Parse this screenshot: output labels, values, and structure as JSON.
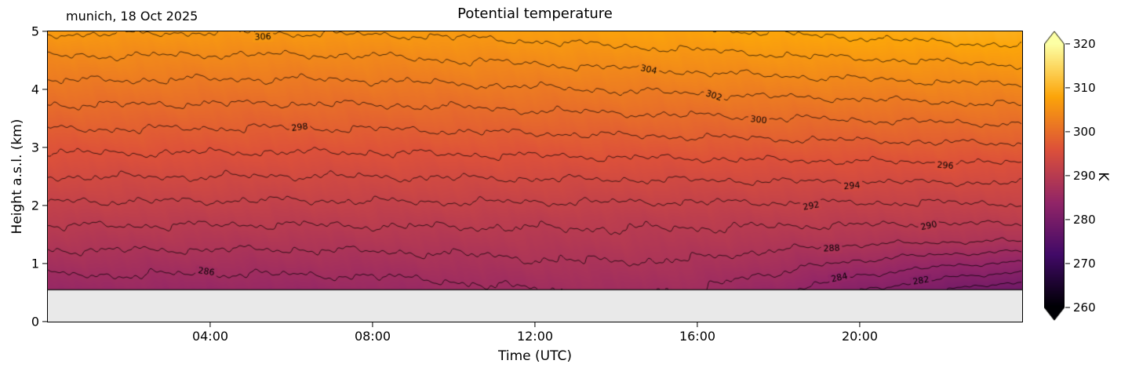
{
  "header": {
    "annotation": "munich, 18 Oct 2025"
  },
  "chart_data": {
    "type": "heatmap",
    "style": "filled_contour",
    "title": "Potential temperature",
    "xlabel": "Time (UTC)",
    "ylabel": "Height a.s.l. (km)",
    "xlim_hours": [
      0,
      24
    ],
    "ylim_km": [
      0,
      5
    ],
    "min_height_km": 0.55,
    "axes_background": "#e9e9e9",
    "xticks": [
      {
        "hour": 4,
        "label": "04:00"
      },
      {
        "hour": 8,
        "label": "08:00"
      },
      {
        "hour": 12,
        "label": "12:00"
      },
      {
        "hour": 16,
        "label": "16:00"
      },
      {
        "hour": 20,
        "label": "20:00"
      }
    ],
    "yticks": [
      0,
      1,
      2,
      3,
      4,
      5
    ],
    "x_hours": [
      0,
      2,
      4,
      6,
      8,
      10,
      12,
      14,
      16,
      18,
      20,
      22,
      24
    ],
    "z_km": [
      0.6,
      1.0,
      1.4,
      1.8,
      2.2,
      2.6,
      3.0,
      3.4,
      3.8,
      4.2,
      4.6,
      5.0
    ],
    "theta_K": [
      [
        285.0,
        286.9,
        288.8,
        290.7,
        292.6,
        294.5,
        296.4,
        298.4,
        300.3,
        302.2,
        304.1,
        306.3
      ],
      [
        285.1,
        286.9,
        288.8,
        290.7,
        292.6,
        294.5,
        296.5,
        298.4,
        300.3,
        302.2,
        304.1,
        306.2
      ],
      [
        284.9,
        286.8,
        288.8,
        290.6,
        292.6,
        294.5,
        296.4,
        298.3,
        300.2,
        302.1,
        304.0,
        306.1
      ],
      [
        285.0,
        286.9,
        288.7,
        290.6,
        292.5,
        294.4,
        296.4,
        298.3,
        300.2,
        302.1,
        304.0,
        306.2
      ],
      [
        285.2,
        287.0,
        288.9,
        290.7,
        292.6,
        294.5,
        296.4,
        298.4,
        300.3,
        302.2,
        304.1,
        306.3
      ],
      [
        285.6,
        287.3,
        289.0,
        290.7,
        292.7,
        294.6,
        296.6,
        298.6,
        300.5,
        302.5,
        304.5,
        306.5
      ],
      [
        286.2,
        287.7,
        289.2,
        290.7,
        292.7,
        294.7,
        296.7,
        298.8,
        300.8,
        302.8,
        304.8,
        306.9
      ],
      [
        286.5,
        287.9,
        289.3,
        290.7,
        292.7,
        294.8,
        296.9,
        299.0,
        301.1,
        303.1,
        305.2,
        307.3
      ],
      [
        286.2,
        287.7,
        289.2,
        290.7,
        292.7,
        294.9,
        297.0,
        299.2,
        301.3,
        303.5,
        305.6,
        307.7
      ],
      [
        284.7,
        286.8,
        288.9,
        290.7,
        292.8,
        295.0,
        297.2,
        299.4,
        301.6,
        303.8,
        306.0,
        308.2
      ],
      [
        282.6,
        285.6,
        288.6,
        290.7,
        292.8,
        295.1,
        297.3,
        299.6,
        301.8,
        304.1,
        306.4,
        308.6
      ],
      [
        280.7,
        284.5,
        288.3,
        290.7,
        292.8,
        295.2,
        297.5,
        299.8,
        302.1,
        304.4,
        306.7,
        309.1
      ],
      [
        279.0,
        283.6,
        288.1,
        290.7,
        292.9,
        295.2,
        297.6,
        300.0,
        302.4,
        304.7,
        307.1,
        309.5
      ]
    ],
    "line_levels": [
      280,
      282,
      284,
      286,
      288,
      290,
      292,
      294,
      296,
      298,
      300,
      302,
      304,
      306,
      308
    ],
    "contour_line_interval_K": 2,
    "contour_labels": [
      {
        "level": 306,
        "t": 5.3
      },
      {
        "level": 304,
        "t": 14.8
      },
      {
        "level": 302,
        "t": 16.4
      },
      {
        "level": 300,
        "t": 17.5
      },
      {
        "level": 298,
        "t": 6.2
      },
      {
        "level": 296,
        "t": 22.1
      },
      {
        "level": 294,
        "t": 19.8
      },
      {
        "level": 292,
        "t": 18.8
      },
      {
        "level": 290,
        "t": 21.7
      },
      {
        "level": 288,
        "t": 19.3
      },
      {
        "level": 286,
        "t": 3.9
      },
      {
        "level": 284,
        "t": 19.5
      },
      {
        "level": 282,
        "t": 21.5
      }
    ],
    "colorbar": {
      "label": "K",
      "vmin": 260,
      "vmax": 320,
      "ticks": [
        260,
        270,
        280,
        290,
        300,
        310,
        320
      ],
      "extend": "both",
      "cmap_stops": [
        [
          0.0,
          "#000004"
        ],
        [
          0.2,
          "#420a68"
        ],
        [
          0.4,
          "#932667"
        ],
        [
          0.6,
          "#dd513a"
        ],
        [
          0.8,
          "#fca50a"
        ],
        [
          1.0,
          "#fcffa4"
        ]
      ]
    }
  }
}
